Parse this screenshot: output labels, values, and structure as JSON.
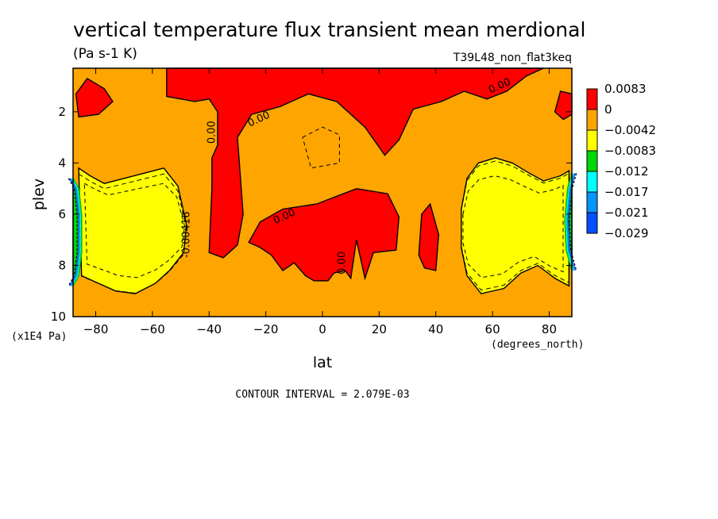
{
  "chart_data": {
    "type": "heatmap",
    "title": "vertical temperature flux transient mean merdional",
    "units": "(Pa s-1 K)",
    "dataset": "T39L48_non_flat3keq",
    "xlabel": "lat",
    "x_units": "(degrees_north)",
    "ylabel": "plev",
    "y_units": "(x1E4 Pa)",
    "xlim": [
      -88,
      88
    ],
    "ylim": [
      0.3,
      10
    ],
    "y_inverted": true,
    "x_ticks": [
      -80,
      -60,
      -40,
      -20,
      0,
      20,
      40,
      60,
      80
    ],
    "y_ticks": [
      2,
      4,
      6,
      8,
      10
    ],
    "contour_interval": "CONTOUR INTERVAL = 2.079E-03",
    "colorbar": {
      "labels": [
        "0.0083",
        "0",
        "−0.0042",
        "−0.0083",
        "−0.012",
        "−0.017",
        "−0.021",
        "−0.029"
      ],
      "colors": [
        "#ff0000",
        "#ffa500",
        "#ffff00",
        "#00d700",
        "#00ffff",
        "#0096ff",
        "#0050ff"
      ]
    },
    "contour_labels": [
      {
        "text": "0.00",
        "lat": -38,
        "plev": 2.8
      },
      {
        "text": "0.00",
        "lat": -22,
        "plev": 2.4
      },
      {
        "text": "0.00",
        "lat": 63,
        "plev": 1.1
      },
      {
        "text": "0.00",
        "lat": -13,
        "plev": 6.2
      },
      {
        "text": "0.00",
        "lat": 8,
        "plev": 7.9
      },
      {
        "text": "-0.00416",
        "lat": -47,
        "plev": 6.8
      }
    ],
    "regions": [
      {
        "name": "positive-top",
        "level": "0 to 0.0083",
        "points": [
          [
            -55,
            0.3
          ],
          [
            -55,
            1.4
          ],
          [
            -45,
            1.6
          ],
          [
            -40,
            1.5
          ],
          [
            -37,
            2.0
          ],
          [
            -37,
            3.3
          ],
          [
            -39,
            3.8
          ],
          [
            -39,
            5.0
          ],
          [
            -40,
            7.5
          ],
          [
            -35,
            7.7
          ],
          [
            -30,
            7.2
          ],
          [
            -28,
            6.0
          ],
          [
            -30,
            3.0
          ],
          [
            -25,
            2.1
          ],
          [
            -15,
            1.8
          ],
          [
            -5,
            1.3
          ],
          [
            5,
            1.6
          ],
          [
            15,
            2.6
          ],
          [
            22,
            3.7
          ],
          [
            27,
            3.1
          ],
          [
            32,
            1.9
          ],
          [
            42,
            1.6
          ],
          [
            50,
            1.2
          ],
          [
            58,
            1.5
          ],
          [
            65,
            1.2
          ],
          [
            72,
            0.6
          ],
          [
            78,
            0.3
          ]
        ]
      },
      {
        "name": "positive-mid",
        "level": "0 to 0.0083",
        "points": [
          [
            -26,
            7.1
          ],
          [
            -22,
            6.3
          ],
          [
            -14,
            5.8
          ],
          [
            -2,
            5.6
          ],
          [
            12,
            5.0
          ],
          [
            23,
            5.2
          ],
          [
            27,
            6.1
          ],
          [
            26,
            7.4
          ],
          [
            18,
            7.5
          ],
          [
            15,
            8.5
          ],
          [
            12,
            7.0
          ],
          [
            10,
            8.5
          ],
          [
            8,
            8.2
          ],
          [
            4,
            8.3
          ],
          [
            2,
            8.6
          ],
          [
            -3,
            8.6
          ],
          [
            -6,
            8.4
          ],
          [
            -10,
            7.9
          ],
          [
            -14,
            8.2
          ],
          [
            -18,
            7.6
          ],
          [
            -22,
            7.3
          ]
        ]
      },
      {
        "name": "positive-small-right",
        "level": "0 to 0.0083",
        "points": [
          [
            34,
            7.6
          ],
          [
            35,
            6.0
          ],
          [
            38,
            5.6
          ],
          [
            41,
            6.8
          ],
          [
            40,
            8.2
          ],
          [
            36,
            8.1
          ]
        ]
      },
      {
        "name": "positive-topleft",
        "level": "0 to 0.0083",
        "points": [
          [
            -86,
            2.2
          ],
          [
            -87,
            1.3
          ],
          [
            -83,
            0.7
          ],
          [
            -77,
            1.1
          ],
          [
            -74,
            1.6
          ],
          [
            -79,
            2.1
          ]
        ]
      },
      {
        "name": "positive-topright",
        "level": "0 to 0.0083",
        "points": [
          [
            88,
            1.3
          ],
          [
            84,
            1.2
          ],
          [
            82,
            2.0
          ],
          [
            85,
            2.3
          ],
          [
            88,
            2.1
          ]
        ]
      },
      {
        "name": "negative-left-lobe",
        "level": "-0.0083 to -0.0042",
        "points": [
          [
            -86,
            4.2
          ],
          [
            -82,
            4.5
          ],
          [
            -77,
            4.8
          ],
          [
            -70,
            4.6
          ],
          [
            -63,
            4.4
          ],
          [
            -56,
            4.2
          ],
          [
            -51,
            4.9
          ],
          [
            -48,
            6.4
          ],
          [
            -49,
            7.5
          ],
          [
            -54,
            8.2
          ],
          [
            -59,
            8.7
          ],
          [
            -66,
            9.1
          ],
          [
            -73,
            9.0
          ],
          [
            -79,
            8.7
          ],
          [
            -85,
            8.4
          ]
        ]
      },
      {
        "name": "negative-right-lobe",
        "level": "-0.0083 to -0.0042",
        "points": [
          [
            49,
            5.8
          ],
          [
            51,
            4.6
          ],
          [
            55,
            4.0
          ],
          [
            61,
            3.8
          ],
          [
            67,
            4.0
          ],
          [
            73,
            4.4
          ],
          [
            78,
            4.7
          ],
          [
            84,
            4.5
          ],
          [
            87,
            4.3
          ],
          [
            87,
            8.8
          ],
          [
            82,
            8.5
          ],
          [
            76,
            8.0
          ],
          [
            70,
            8.3
          ],
          [
            64,
            8.9
          ],
          [
            56,
            9.1
          ],
          [
            51,
            8.4
          ],
          [
            49,
            7.3
          ]
        ]
      },
      {
        "name": "strong-left-edge",
        "level": "-0.029 to -0.012",
        "points": [
          [
            -88,
            4.6
          ],
          [
            -86,
            5.0
          ],
          [
            -85,
            6.0
          ],
          [
            -85,
            7.5
          ],
          [
            -86,
            8.4
          ],
          [
            -88,
            8.8
          ]
        ]
      },
      {
        "name": "strong-right-edge",
        "level": "-0.029 to -0.012",
        "points": [
          [
            88,
            4.4
          ],
          [
            86.5,
            5.0
          ],
          [
            85.5,
            6.2
          ],
          [
            86,
            7.4
          ],
          [
            88,
            8.2
          ]
        ]
      }
    ]
  }
}
